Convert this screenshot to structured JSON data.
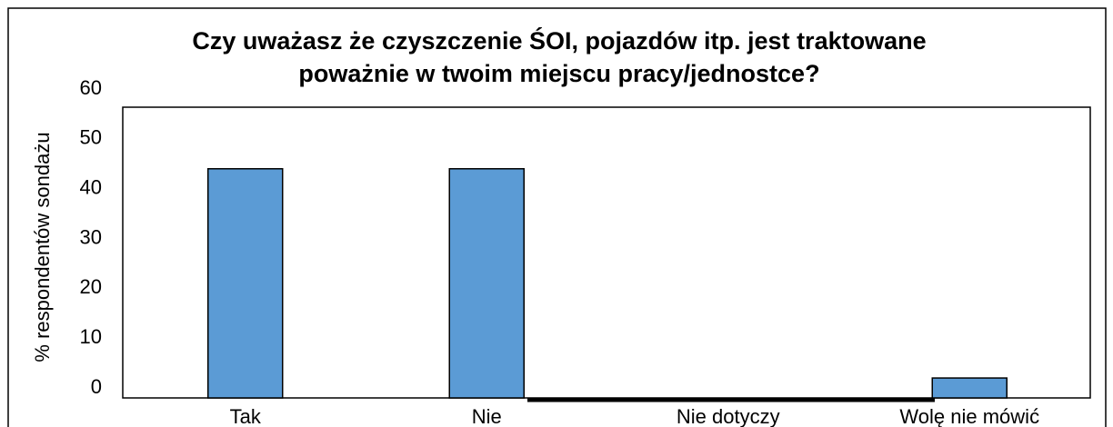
{
  "chart_data": {
    "type": "bar",
    "title": [
      "Czy uważasz że czyszczenie ŚOI, pojazdów itp. jest traktowane",
      "poważnie w twoim miejscu pracy/jednostce?"
    ],
    "y_label": "% respondentów sondażu",
    "categories": [
      "Tak",
      "Nie",
      "Nie dotyczy",
      "Wolę nie mówić"
    ],
    "values": [
      46,
      46,
      0,
      4
    ],
    "color": "#5b9bd5",
    "ylim": [
      0,
      60
    ],
    "yticks": [
      0,
      10,
      20,
      30,
      40,
      50,
      60
    ],
    "grid": false
  }
}
